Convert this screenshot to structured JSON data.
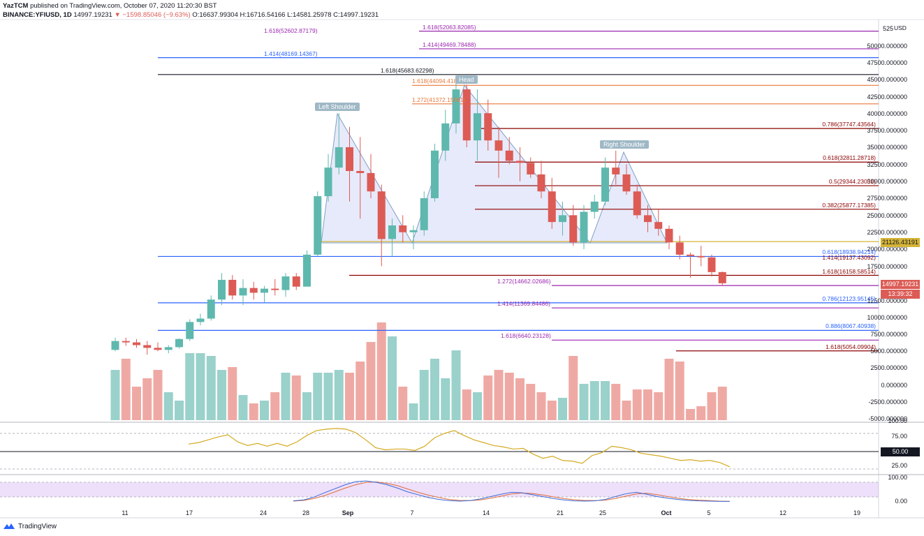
{
  "header": {
    "line1_user": "YazTCM",
    "line1_rest": "published on TradingView.com, October 07, 2020 11:20:30 BST",
    "symbol": "BINANCE:YFIUSD, 1D",
    "last": "14997.19231",
    "change": "▼ −1598.85046 (−9.63%)",
    "ohlc": "O:16637.99304 H:16716.54166 L:14581.25978 C:14997.19231"
  },
  "currency": "USD",
  "colors": {
    "up": "#5fb8ae",
    "down": "#dc5b55",
    "volume_up": "#9ad1cb",
    "volume_down": "#efa9a4",
    "purple": "#9c27b0",
    "blue": "#2962ff",
    "maroon": "#8b0000",
    "orange": "#e8793a",
    "gold": "#d5b436",
    "rsi": "#d4aa22",
    "stoch_k": "#3b6ad6",
    "stoch_d": "#e06c3a",
    "band": "#e1c9f3"
  },
  "price_tags": {
    "level": "21126.43191",
    "last": "14997.19231",
    "countdown": "13:39:32",
    "rsi_level": "50.00"
  },
  "patterns": {
    "left": "Left Shoulder",
    "head": "Head",
    "right": "Right Shoulder"
  },
  "x_labels": [
    "11",
    "17",
    "24",
    "28",
    "Sep",
    "7",
    "14",
    "21",
    "25",
    "Oct",
    "5",
    "12",
    "19"
  ],
  "y_labels": [
    "525",
    "50000.000000",
    "47500.000000",
    "45000.000000",
    "42500.000000",
    "40000.000000",
    "37500.000000",
    "35000.000000",
    "32500.000000",
    "30000.000000",
    "27500.000000",
    "25000.000000",
    "22500.000000",
    "20000.000000",
    "17500.000000",
    "12500.000000",
    "10000.000000",
    "7500.000000",
    "5000.000000",
    "2500.000000",
    "0.000000",
    "-2500.000000",
    "-5000.000000"
  ],
  "rsi_labels": [
    "100.00",
    "75.00",
    "25.00"
  ],
  "stoch_labels": [
    "100.00",
    "0.00"
  ],
  "levels": [
    {
      "text": "1.618(52063.82085)",
      "price": 52063.82,
      "color": "#9c27b0",
      "x1": 600,
      "x2": 1258,
      "align": "left",
      "lx": 605
    },
    {
      "text": "1.618(52602.87179)",
      "price": 51500,
      "color": "#9c27b0",
      "x1": 226,
      "x2": 1258,
      "align": "left",
      "lx": 378,
      "label_only": true
    },
    {
      "text": "1.414(49469.78488)",
      "price": 49469.78,
      "color": "#9c27b0",
      "x1": 600,
      "x2": 1258,
      "align": "left",
      "lx": 605
    },
    {
      "text": "1.414(48169.14367)",
      "price": 48169.14,
      "color": "#2962ff",
      "x1": 226,
      "x2": 1258,
      "align": "left",
      "lx": 378
    },
    {
      "text": "1.618(45683.62298)",
      "price": 45683.62,
      "color": "#131722",
      "x1": 226,
      "x2": 1258,
      "align": "left",
      "lx": 545
    },
    {
      "text": "1.618(44094.41823)",
      "price": 44094.42,
      "color": "#e8793a",
      "x1": 590,
      "x2": 1258,
      "align": "left",
      "lx": 590
    },
    {
      "text": "1.272(41372.15091)",
      "price": 41372.15,
      "color": "#e8793a",
      "x1": 590,
      "x2": 1258,
      "align": "left",
      "lx": 590
    },
    {
      "text": "0.786(37747.43564)",
      "price": 37747.44,
      "color": "#8b0000",
      "x1": 680,
      "x2": 1258,
      "align": "right",
      "lx": 1254
    },
    {
      "text": "0.618(32811.28718)",
      "price": 32811.29,
      "color": "#8b0000",
      "x1": 680,
      "x2": 1258,
      "align": "right",
      "lx": 1254
    },
    {
      "text": "0.5(29344.23051)",
      "price": 29344.23,
      "color": "#8b0000",
      "x1": 680,
      "x2": 1258,
      "align": "right",
      "lx": 1254
    },
    {
      "text": "0.382(25877.17385)",
      "price": 25877.17,
      "color": "#8b0000",
      "x1": 680,
      "x2": 1258,
      "align": "right",
      "lx": 1254
    },
    {
      "text": "",
      "price": 21126.43,
      "color": "#d5b436",
      "x1": 460,
      "x2": 1258,
      "align": "right",
      "lx": 1254
    },
    {
      "text": "0.618(18938.94214)",
      "price": 18938.94,
      "color": "#2962ff",
      "x1": 226,
      "x2": 1258,
      "align": "right",
      "lx": 1254
    },
    {
      "text": "1.414(19137.43092)",
      "price": 18200,
      "color": "#8b0000",
      "x1": 460,
      "x2": 1258,
      "align": "right",
      "lx": 1254,
      "label_only": true
    },
    {
      "text": "1.618(16158.58514)",
      "price": 16158.59,
      "color": "#8b0000",
      "x1": 500,
      "x2": 1258,
      "align": "right",
      "lx": 1254
    },
    {
      "text": "1.272(14662.02686)",
      "price": 14662.03,
      "color": "#9c27b0",
      "x1": 790,
      "x2": 1258,
      "align": "left",
      "lx": 712
    },
    {
      "text": "0.786(12123.95145)",
      "price": 12123.95,
      "color": "#2962ff",
      "x1": 226,
      "x2": 1258,
      "align": "right",
      "lx": 1254
    },
    {
      "text": "1.414(11369.84486)",
      "price": 11369.84,
      "color": "#9c27b0",
      "x1": 790,
      "x2": 1258,
      "align": "left",
      "lx": 712
    },
    {
      "text": "0.886(8067.40938)",
      "price": 8067.41,
      "color": "#2962ff",
      "x1": 226,
      "x2": 1258,
      "align": "right",
      "lx": 1254
    },
    {
      "text": "1.618(6640.23128)",
      "price": 6640.23,
      "color": "#9c27b0",
      "x1": 790,
      "x2": 1258,
      "align": "left",
      "lx": 717
    },
    {
      "text": "1.618(5054.09904)",
      "price": 5054.1,
      "color": "#8b0000",
      "x1": 968,
      "x2": 1258,
      "align": "right",
      "lx": 1254
    }
  ],
  "chart_data": {
    "type": "candlestick",
    "title": "BINANCE:YFIUSD, 1D",
    "ylim": [
      -5000,
      52500
    ],
    "candles": [
      {
        "date": "2020-08-11",
        "o": 5200,
        "h": 7000,
        "l": 5000,
        "c": 6500
      },
      {
        "date": "2020-08-12",
        "o": 6500,
        "h": 7000,
        "l": 5800,
        "c": 6300
      },
      {
        "date": "2020-08-13",
        "o": 6300,
        "h": 6800,
        "l": 5500,
        "c": 5900
      },
      {
        "date": "2020-08-14",
        "o": 5900,
        "h": 6500,
        "l": 4500,
        "c": 5500
      },
      {
        "date": "2020-08-15",
        "o": 5500,
        "h": 6300,
        "l": 5000,
        "c": 5200
      },
      {
        "date": "2020-08-16",
        "o": 5200,
        "h": 5900,
        "l": 4700,
        "c": 5600
      },
      {
        "date": "2020-08-17",
        "o": 5600,
        "h": 6900,
        "l": 5400,
        "c": 6800
      },
      {
        "date": "2020-08-18",
        "o": 6800,
        "h": 9700,
        "l": 6500,
        "c": 9300
      },
      {
        "date": "2020-08-19",
        "o": 9300,
        "h": 10500,
        "l": 8800,
        "c": 9800
      },
      {
        "date": "2020-08-20",
        "o": 9800,
        "h": 13200,
        "l": 9500,
        "c": 12600
      },
      {
        "date": "2020-08-21",
        "o": 12600,
        "h": 16500,
        "l": 11800,
        "c": 15500
      },
      {
        "date": "2020-08-22",
        "o": 15500,
        "h": 16200,
        "l": 12600,
        "c": 13200
      },
      {
        "date": "2020-08-23",
        "o": 13200,
        "h": 15600,
        "l": 11800,
        "c": 14300
      },
      {
        "date": "2020-08-24",
        "o": 14300,
        "h": 15200,
        "l": 12600,
        "c": 13600
      },
      {
        "date": "2020-08-25",
        "o": 13600,
        "h": 14600,
        "l": 12200,
        "c": 14200
      },
      {
        "date": "2020-08-26",
        "o": 14200,
        "h": 15600,
        "l": 13200,
        "c": 14000
      },
      {
        "date": "2020-08-27",
        "o": 14000,
        "h": 16500,
        "l": 13000,
        "c": 16000
      },
      {
        "date": "2020-08-28",
        "o": 16000,
        "h": 16500,
        "l": 14000,
        "c": 14500
      },
      {
        "date": "2020-08-29",
        "o": 14500,
        "h": 19800,
        "l": 14500,
        "c": 19200
      },
      {
        "date": "2020-08-30",
        "o": 19200,
        "h": 28500,
        "l": 19000,
        "c": 27800
      },
      {
        "date": "2020-08-31",
        "o": 27800,
        "h": 34000,
        "l": 27000,
        "c": 32000
      },
      {
        "date": "2020-09-01",
        "o": 32000,
        "h": 40000,
        "l": 31000,
        "c": 35000
      },
      {
        "date": "2020-09-02",
        "o": 35000,
        "h": 38000,
        "l": 27000,
        "c": 31500
      },
      {
        "date": "2020-09-03",
        "o": 31500,
        "h": 36500,
        "l": 24500,
        "c": 31200
      },
      {
        "date": "2020-09-04",
        "o": 31200,
        "h": 34000,
        "l": 27500,
        "c": 28500
      },
      {
        "date": "2020-09-05",
        "o": 28500,
        "h": 29500,
        "l": 17500,
        "c": 21500
      },
      {
        "date": "2020-09-06",
        "o": 21500,
        "h": 24500,
        "l": 19000,
        "c": 23500
      },
      {
        "date": "2020-09-07",
        "o": 23500,
        "h": 25000,
        "l": 21000,
        "c": 22500
      },
      {
        "date": "2020-09-08",
        "o": 22500,
        "h": 23500,
        "l": 20000,
        "c": 22800
      },
      {
        "date": "2020-09-09",
        "o": 22800,
        "h": 28500,
        "l": 22000,
        "c": 27500
      },
      {
        "date": "2020-09-10",
        "o": 27500,
        "h": 35500,
        "l": 27000,
        "c": 34500
      },
      {
        "date": "2020-09-11",
        "o": 34500,
        "h": 40500,
        "l": 33000,
        "c": 38500
      },
      {
        "date": "2020-09-12",
        "o": 38500,
        "h": 45000,
        "l": 37000,
        "c": 43500
      },
      {
        "date": "2020-09-13",
        "o": 43500,
        "h": 44200,
        "l": 35000,
        "c": 36000
      },
      {
        "date": "2020-09-14",
        "o": 36000,
        "h": 43500,
        "l": 33000,
        "c": 40000
      },
      {
        "date": "2020-09-15",
        "o": 40000,
        "h": 42000,
        "l": 34500,
        "c": 36000
      },
      {
        "date": "2020-09-16",
        "o": 36000,
        "h": 38000,
        "l": 30500,
        "c": 34500
      },
      {
        "date": "2020-09-17",
        "o": 34500,
        "h": 36500,
        "l": 32500,
        "c": 33000
      },
      {
        "date": "2020-09-18",
        "o": 33000,
        "h": 35000,
        "l": 30000,
        "c": 32700
      },
      {
        "date": "2020-09-19",
        "o": 32700,
        "h": 33500,
        "l": 30500,
        "c": 31000
      },
      {
        "date": "2020-09-20",
        "o": 31000,
        "h": 33000,
        "l": 27500,
        "c": 28500
      },
      {
        "date": "2020-09-21",
        "o": 28500,
        "h": 30500,
        "l": 23000,
        "c": 24000
      },
      {
        "date": "2020-09-22",
        "o": 24000,
        "h": 27000,
        "l": 22000,
        "c": 25000
      },
      {
        "date": "2020-09-23",
        "o": 25000,
        "h": 26500,
        "l": 20500,
        "c": 21000
      },
      {
        "date": "2020-09-24",
        "o": 21000,
        "h": 26500,
        "l": 20000,
        "c": 25500
      },
      {
        "date": "2020-09-25",
        "o": 25500,
        "h": 28000,
        "l": 24500,
        "c": 27000
      },
      {
        "date": "2020-09-26",
        "o": 27000,
        "h": 33500,
        "l": 26500,
        "c": 32000
      },
      {
        "date": "2020-09-27",
        "o": 32000,
        "h": 34500,
        "l": 29500,
        "c": 31000
      },
      {
        "date": "2020-09-28",
        "o": 31000,
        "h": 32500,
        "l": 28000,
        "c": 28500
      },
      {
        "date": "2020-09-29",
        "o": 28500,
        "h": 29500,
        "l": 24500,
        "c": 25000
      },
      {
        "date": "2020-09-30",
        "o": 25000,
        "h": 26500,
        "l": 22500,
        "c": 24000
      },
      {
        "date": "2020-10-01",
        "o": 24000,
        "h": 26000,
        "l": 22000,
        "c": 23000
      },
      {
        "date": "2020-10-02",
        "o": 23000,
        "h": 23500,
        "l": 20000,
        "c": 21000
      },
      {
        "date": "2020-10-03",
        "o": 21000,
        "h": 22000,
        "l": 18500,
        "c": 19200
      },
      {
        "date": "2020-10-04",
        "o": 19200,
        "h": 19500,
        "l": 15800,
        "c": 19000
      },
      {
        "date": "2020-10-05",
        "o": 19000,
        "h": 20500,
        "l": 17500,
        "c": 18800
      },
      {
        "date": "2020-10-06",
        "o": 18800,
        "h": 19200,
        "l": 16000,
        "c": 16638
      },
      {
        "date": "2020-10-07",
        "o": 16638,
        "h": 16717,
        "l": 14581,
        "c": 14997
      }
    ],
    "volume": [
      18,
      22,
      12,
      15,
      18,
      10,
      7,
      24,
      24,
      23,
      18,
      19,
      9,
      6,
      7,
      10,
      17,
      16,
      10,
      17,
      17,
      18,
      17,
      21,
      28,
      35,
      30,
      12,
      6,
      18,
      22,
      15,
      25,
      11,
      10,
      16,
      18,
      17,
      15,
      13,
      10,
      7,
      8,
      23,
      13,
      14,
      14,
      13,
      7,
      11,
      11,
      10,
      22,
      21,
      4,
      5,
      10,
      12,
      4
    ],
    "rsi": [
      60,
      62,
      66,
      70,
      73,
      63,
      58,
      61,
      57,
      61,
      57,
      63,
      72,
      79,
      81,
      82,
      81,
      76,
      66,
      55,
      52,
      53,
      53,
      51,
      57,
      69,
      75,
      79,
      72,
      66,
      62,
      58,
      56,
      53,
      54,
      46,
      40,
      43,
      37,
      36,
      33,
      44,
      48,
      57,
      55,
      52,
      47,
      45,
      43,
      40,
      37,
      38,
      36,
      37,
      34,
      28
    ],
    "stoch_k": [
      4,
      8,
      20,
      38,
      55,
      72,
      85,
      88,
      82,
      72,
      58,
      42,
      30,
      18,
      10,
      5,
      3,
      5,
      12,
      22,
      32,
      40,
      38,
      30,
      22,
      14,
      8,
      4,
      3,
      4,
      10,
      22,
      34,
      40,
      32,
      22,
      15,
      10,
      6,
      4,
      3,
      2,
      2
    ],
    "stoch_d": [
      3,
      6,
      14,
      26,
      42,
      58,
      72,
      82,
      84,
      78,
      68,
      54,
      40,
      28,
      18,
      10,
      6,
      5,
      8,
      15,
      24,
      33,
      37,
      35,
      29,
      21,
      14,
      9,
      6,
      5,
      7,
      14,
      24,
      33,
      36,
      30,
      22,
      15,
      10,
      7,
      5,
      3,
      2
    ]
  }
}
